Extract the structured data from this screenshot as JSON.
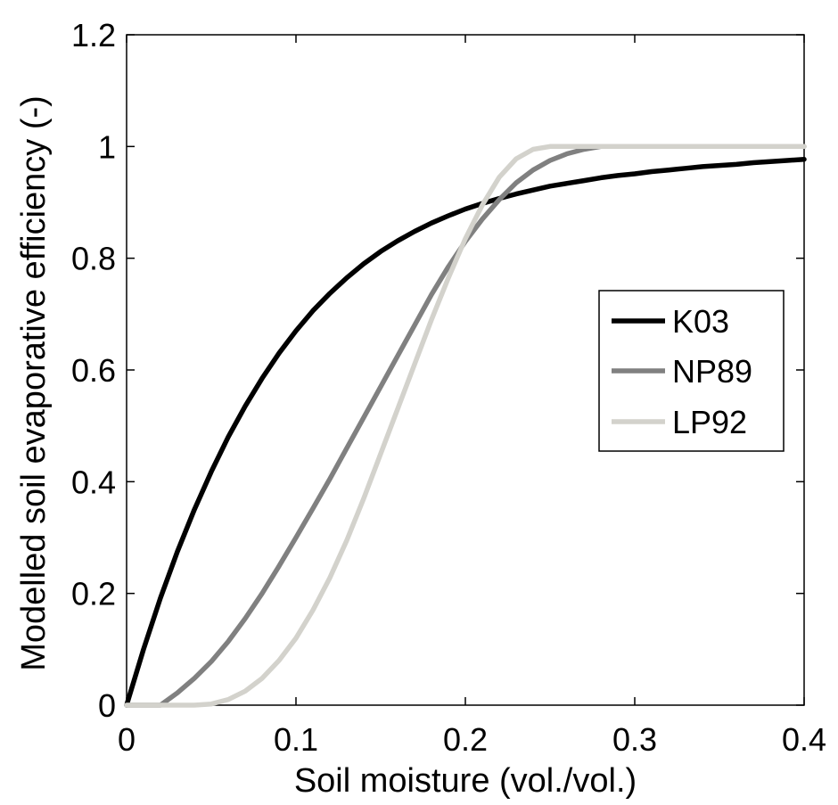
{
  "chart_data": {
    "type": "line",
    "title": "",
    "xlabel": "Soil moisture (vol./vol.)",
    "ylabel": "Modelled soil evaporative efficiency (-)",
    "xlim": [
      0,
      0.4
    ],
    "ylim": [
      0,
      1.2
    ],
    "xticks": [
      0,
      0.1,
      0.2,
      0.3,
      0.4
    ],
    "xtick_labels": [
      "0",
      "0.1",
      "0.2",
      "0.3",
      "0.4"
    ],
    "yticks": [
      0,
      0.2,
      0.4,
      0.6,
      0.8,
      1.0,
      1.2
    ],
    "ytick_labels": [
      "0",
      "0.2",
      "0.4",
      "0.6",
      "0.8",
      "1",
      "1.2"
    ],
    "grid": false,
    "legend_position": "right",
    "x": [
      0,
      0.01,
      0.02,
      0.03,
      0.04,
      0.05,
      0.06,
      0.07,
      0.08,
      0.09,
      0.1,
      0.11,
      0.12,
      0.13,
      0.14,
      0.15,
      0.16,
      0.17,
      0.18,
      0.19,
      0.2,
      0.21,
      0.22,
      0.23,
      0.24,
      0.25,
      0.26,
      0.27,
      0.28,
      0.29,
      0.3,
      0.31,
      0.32,
      0.33,
      0.34,
      0.35,
      0.36,
      0.37,
      0.38,
      0.39,
      0.4
    ],
    "series": [
      {
        "name": "K03",
        "color": "#000000",
        "values": [
          0,
          0.1,
          0.192,
          0.275,
          0.35,
          0.418,
          0.48,
          0.535,
          0.585,
          0.63,
          0.67,
          0.706,
          0.737,
          0.765,
          0.79,
          0.812,
          0.831,
          0.848,
          0.863,
          0.876,
          0.888,
          0.898,
          0.907,
          0.915,
          0.922,
          0.929,
          0.934,
          0.939,
          0.944,
          0.948,
          0.951,
          0.955,
          0.958,
          0.961,
          0.964,
          0.966,
          0.968,
          0.971,
          0.973,
          0.975,
          0.977
        ]
      },
      {
        "name": "NP89",
        "color": "#808080",
        "values": [
          0,
          0,
          0,
          0.022,
          0.048,
          0.078,
          0.114,
          0.155,
          0.2,
          0.249,
          0.3,
          0.352,
          0.405,
          0.46,
          0.515,
          0.57,
          0.625,
          0.68,
          0.735,
          0.785,
          0.83,
          0.87,
          0.905,
          0.935,
          0.958,
          0.975,
          0.987,
          0.995,
          1.0,
          1.0,
          1.0,
          1.0,
          1.0,
          1.0,
          1.0,
          1.0,
          1.0,
          1.0,
          1.0,
          1.0,
          1.0
        ]
      },
      {
        "name": "LP92",
        "color": "#d3d2cc",
        "values": [
          0,
          0,
          0,
          0,
          0,
          0.002,
          0.01,
          0.025,
          0.048,
          0.08,
          0.12,
          0.17,
          0.228,
          0.295,
          0.37,
          0.45,
          0.53,
          0.61,
          0.69,
          0.765,
          0.835,
          0.895,
          0.945,
          0.978,
          0.995,
          1.0,
          1.0,
          1.0,
          1.0,
          1.0,
          1.0,
          1.0,
          1.0,
          1.0,
          1.0,
          1.0,
          1.0,
          1.0,
          1.0,
          1.0,
          1.0
        ]
      }
    ]
  }
}
